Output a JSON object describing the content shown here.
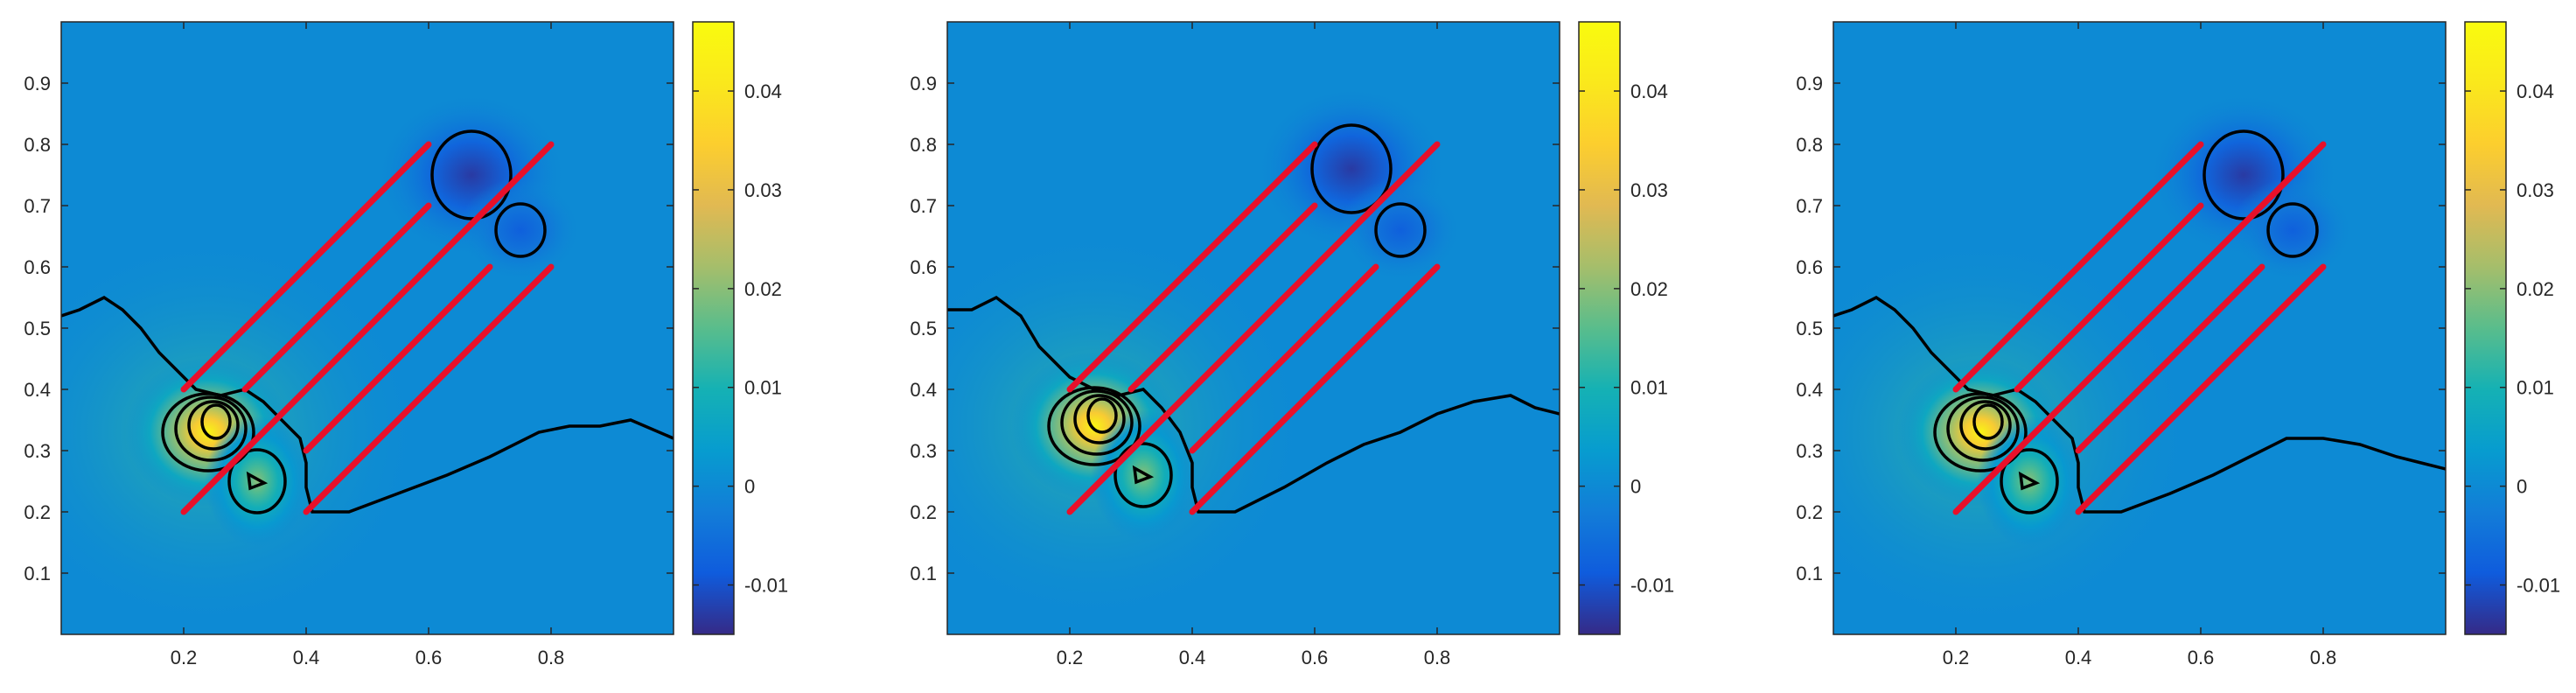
{
  "figure": {
    "panel_count": 3
  },
  "chart_data": [
    {
      "type": "heatmap",
      "title": "",
      "xlabel": "",
      "ylabel": "",
      "xlim": [
        0,
        1
      ],
      "ylim": [
        0,
        1
      ],
      "x_ticks": [
        "0.2",
        "0.4",
        "0.6",
        "0.8"
      ],
      "y_ticks": [
        "0.1",
        "0.2",
        "0.3",
        "0.4",
        "0.5",
        "0.6",
        "0.7",
        "0.8",
        "0.9"
      ],
      "colorbar": {
        "min": -0.015,
        "max": 0.047,
        "ticks": [
          "-0.01",
          "0",
          "0.01",
          "0.02",
          "0.03",
          "0.04"
        ],
        "colormap": "parula"
      },
      "field_features": [
        {
          "kind": "peak",
          "center": [
            0.24,
            0.33
          ],
          "value": 0.045
        },
        {
          "kind": "peak",
          "center": [
            0.32,
            0.25
          ],
          "value": 0.02
        },
        {
          "kind": "trough",
          "center": [
            0.67,
            0.75
          ],
          "value": -0.013
        },
        {
          "kind": "trough",
          "center": [
            0.75,
            0.66
          ],
          "value": -0.008
        }
      ],
      "red_lines": [
        [
          [
            0.2,
            0.4
          ],
          [
            0.6,
            0.8
          ]
        ],
        [
          [
            0.3,
            0.4
          ],
          [
            0.6,
            0.7
          ]
        ],
        [
          [
            0.2,
            0.2
          ],
          [
            0.8,
            0.8
          ]
        ],
        [
          [
            0.4,
            0.3
          ],
          [
            0.7,
            0.6
          ]
        ],
        [
          [
            0.4,
            0.2
          ],
          [
            0.8,
            0.6
          ]
        ]
      ],
      "zero_contour": [
        [
          0,
          0.52
        ],
        [
          0.03,
          0.53
        ],
        [
          0.07,
          0.55
        ],
        [
          0.1,
          0.53
        ],
        [
          0.13,
          0.5
        ],
        [
          0.16,
          0.46
        ],
        [
          0.2,
          0.42
        ],
        [
          0.22,
          0.4
        ],
        [
          0.26,
          0.39
        ],
        [
          0.3,
          0.4
        ],
        [
          0.33,
          0.38
        ],
        [
          0.36,
          0.35
        ],
        [
          0.39,
          0.32
        ],
        [
          0.4,
          0.28
        ],
        [
          0.4,
          0.24
        ],
        [
          0.41,
          0.2
        ],
        [
          0.47,
          0.2
        ],
        [
          0.55,
          0.23
        ],
        [
          0.63,
          0.26
        ],
        [
          0.7,
          0.29
        ],
        [
          0.78,
          0.33
        ],
        [
          0.83,
          0.34
        ],
        [
          0.88,
          0.34
        ],
        [
          0.93,
          0.35
        ],
        [
          1.0,
          0.32
        ]
      ]
    },
    {
      "type": "heatmap",
      "title": "",
      "xlabel": "",
      "ylabel": "",
      "xlim": [
        0,
        1
      ],
      "ylim": [
        0,
        1
      ],
      "x_ticks": [
        "0.2",
        "0.4",
        "0.6",
        "0.8"
      ],
      "y_ticks": [
        "0.1",
        "0.2",
        "0.3",
        "0.4",
        "0.5",
        "0.6",
        "0.7",
        "0.8",
        "0.9"
      ],
      "colorbar": {
        "min": -0.015,
        "max": 0.047,
        "ticks": [
          "-0.01",
          "0",
          "0.01",
          "0.02",
          "0.03",
          "0.04"
        ],
        "colormap": "parula"
      },
      "field_features": [
        {
          "kind": "peak",
          "center": [
            0.24,
            0.34
          ],
          "value": 0.045
        },
        {
          "kind": "peak",
          "center": [
            0.32,
            0.26
          ],
          "value": 0.02
        },
        {
          "kind": "trough",
          "center": [
            0.66,
            0.76
          ],
          "value": -0.013
        },
        {
          "kind": "trough",
          "center": [
            0.74,
            0.66
          ],
          "value": -0.008
        }
      ],
      "red_lines": [
        [
          [
            0.2,
            0.4
          ],
          [
            0.6,
            0.8
          ]
        ],
        [
          [
            0.3,
            0.4
          ],
          [
            0.6,
            0.7
          ]
        ],
        [
          [
            0.2,
            0.2
          ],
          [
            0.8,
            0.8
          ]
        ],
        [
          [
            0.4,
            0.3
          ],
          [
            0.7,
            0.6
          ]
        ],
        [
          [
            0.4,
            0.2
          ],
          [
            0.8,
            0.6
          ]
        ]
      ],
      "zero_contour": [
        [
          0,
          0.53
        ],
        [
          0.04,
          0.53
        ],
        [
          0.08,
          0.55
        ],
        [
          0.12,
          0.52
        ],
        [
          0.15,
          0.47
        ],
        [
          0.2,
          0.42
        ],
        [
          0.24,
          0.4
        ],
        [
          0.28,
          0.39
        ],
        [
          0.32,
          0.4
        ],
        [
          0.35,
          0.37
        ],
        [
          0.38,
          0.33
        ],
        [
          0.4,
          0.28
        ],
        [
          0.4,
          0.24
        ],
        [
          0.41,
          0.2
        ],
        [
          0.47,
          0.2
        ],
        [
          0.55,
          0.24
        ],
        [
          0.62,
          0.28
        ],
        [
          0.68,
          0.31
        ],
        [
          0.74,
          0.33
        ],
        [
          0.8,
          0.36
        ],
        [
          0.86,
          0.38
        ],
        [
          0.92,
          0.39
        ],
        [
          0.96,
          0.37
        ],
        [
          1.0,
          0.36
        ]
      ]
    },
    {
      "type": "heatmap",
      "title": "",
      "xlabel": "",
      "ylabel": "",
      "xlim": [
        0,
        1
      ],
      "ylim": [
        0,
        1
      ],
      "x_ticks": [
        "0.2",
        "0.4",
        "0.6",
        "0.8"
      ],
      "y_ticks": [
        "0.1",
        "0.2",
        "0.3",
        "0.4",
        "0.5",
        "0.6",
        "0.7",
        "0.8",
        "0.9"
      ],
      "colorbar": {
        "min": -0.015,
        "max": 0.047,
        "ticks": [
          "-0.01",
          "0",
          "0.01",
          "0.02",
          "0.03",
          "0.04"
        ],
        "colormap": "parula"
      },
      "field_features": [
        {
          "kind": "peak",
          "center": [
            0.24,
            0.33
          ],
          "value": 0.045
        },
        {
          "kind": "peak",
          "center": [
            0.32,
            0.25
          ],
          "value": 0.02
        },
        {
          "kind": "trough",
          "center": [
            0.67,
            0.75
          ],
          "value": -0.013
        },
        {
          "kind": "trough",
          "center": [
            0.75,
            0.66
          ],
          "value": -0.008
        }
      ],
      "red_lines": [
        [
          [
            0.2,
            0.4
          ],
          [
            0.6,
            0.8
          ]
        ],
        [
          [
            0.3,
            0.4
          ],
          [
            0.6,
            0.7
          ]
        ],
        [
          [
            0.2,
            0.2
          ],
          [
            0.8,
            0.8
          ]
        ],
        [
          [
            0.4,
            0.3
          ],
          [
            0.7,
            0.6
          ]
        ],
        [
          [
            0.4,
            0.2
          ],
          [
            0.8,
            0.6
          ]
        ]
      ],
      "zero_contour": [
        [
          0,
          0.52
        ],
        [
          0.03,
          0.53
        ],
        [
          0.07,
          0.55
        ],
        [
          0.1,
          0.53
        ],
        [
          0.13,
          0.5
        ],
        [
          0.16,
          0.46
        ],
        [
          0.2,
          0.42
        ],
        [
          0.22,
          0.4
        ],
        [
          0.26,
          0.39
        ],
        [
          0.3,
          0.4
        ],
        [
          0.33,
          0.38
        ],
        [
          0.36,
          0.35
        ],
        [
          0.39,
          0.32
        ],
        [
          0.4,
          0.28
        ],
        [
          0.4,
          0.24
        ],
        [
          0.41,
          0.2
        ],
        [
          0.47,
          0.2
        ],
        [
          0.55,
          0.23
        ],
        [
          0.62,
          0.26
        ],
        [
          0.68,
          0.29
        ],
        [
          0.74,
          0.32
        ],
        [
          0.8,
          0.32
        ],
        [
          0.86,
          0.31
        ],
        [
          0.92,
          0.29
        ],
        [
          0.96,
          0.28
        ],
        [
          1.0,
          0.27
        ]
      ]
    }
  ]
}
